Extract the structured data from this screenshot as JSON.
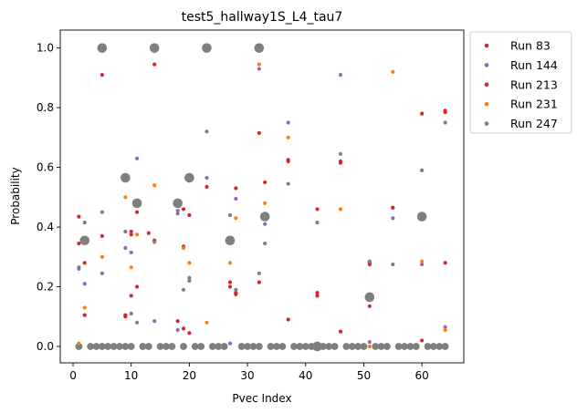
{
  "chart_data": {
    "type": "scatter",
    "title": "test5_hallway1S_L4_tau7",
    "xlabel": "Pvec Index",
    "ylabel": "Probability",
    "xlim": [
      -2.2,
      67.2
    ],
    "ylim": [
      -0.055,
      1.06
    ],
    "xticks": [
      0,
      10,
      20,
      30,
      40,
      50,
      60
    ],
    "yticks": [
      0.0,
      0.2,
      0.4,
      0.6,
      0.8,
      1.0
    ],
    "grid": false,
    "legend_position": "outside-right",
    "series": [
      {
        "name": "Run 83",
        "color": "#d62728",
        "points": [
          [
            1,
            0.345
          ],
          [
            1,
            0.435
          ],
          [
            2,
            0.105
          ],
          [
            2,
            0.28
          ],
          [
            5,
            0.91
          ],
          [
            5,
            0.37
          ],
          [
            9,
            0.105
          ],
          [
            9,
            0.1
          ],
          [
            10,
            0.385
          ],
          [
            10,
            0.17
          ],
          [
            11,
            0.2
          ],
          [
            11,
            0.45
          ],
          [
            13,
            0.38
          ],
          [
            14,
            0.945
          ],
          [
            18,
            0.085
          ],
          [
            19,
            0.06
          ],
          [
            19,
            0.46
          ],
          [
            20,
            0.045
          ],
          [
            20,
            0.44
          ],
          [
            23,
            0.535
          ],
          [
            27,
            0.215
          ],
          [
            27,
            0.2
          ],
          [
            28,
            0.175
          ],
          [
            28,
            0.53
          ],
          [
            32,
            0.715
          ],
          [
            32,
            0.215
          ],
          [
            33,
            0.55
          ],
          [
            37,
            0.625
          ],
          [
            37,
            0.09
          ],
          [
            42,
            0.46
          ],
          [
            42,
            0.18
          ],
          [
            46,
            0.615
          ],
          [
            46,
            0.05
          ],
          [
            51,
            0.275
          ],
          [
            51,
            0.135
          ],
          [
            55,
            0.465
          ],
          [
            60,
            0.78
          ],
          [
            60,
            0.02
          ],
          [
            64,
            0.785
          ],
          [
            64,
            0.28
          ]
        ]
      },
      {
        "name": "Run 144",
        "color": "#9467bd",
        "points": [
          [
            1,
            0.26
          ],
          [
            2,
            0.21
          ],
          [
            5,
            0.245
          ],
          [
            9,
            0.33
          ],
          [
            10,
            0.315
          ],
          [
            11,
            0.63
          ],
          [
            14,
            0.085
          ],
          [
            18,
            0.455
          ],
          [
            18,
            0.055
          ],
          [
            20,
            0.23
          ],
          [
            23,
            0.565
          ],
          [
            27,
            0.01
          ],
          [
            28,
            0.495
          ],
          [
            32,
            0.93
          ],
          [
            33,
            0.41
          ],
          [
            37,
            0.75
          ],
          [
            42,
            0.01
          ],
          [
            46,
            0.91
          ],
          [
            51,
            0.015
          ],
          [
            55,
            0.43
          ],
          [
            60,
            0.275
          ],
          [
            64,
            0.065
          ]
        ]
      },
      {
        "name": "Run 213",
        "color": "#d62728",
        "points": [
          [
            10,
            0.375
          ],
          [
            14,
            0.355
          ],
          [
            19,
            0.335
          ],
          [
            28,
            0.18
          ],
          [
            37,
            0.62
          ],
          [
            42,
            0.17
          ],
          [
            46,
            0.62
          ],
          [
            51,
            0.28
          ],
          [
            55,
            0.465
          ],
          [
            64,
            0.79
          ]
        ]
      },
      {
        "name": "Run 231",
        "color": "#ff7f0e",
        "points": [
          [
            1,
            0.01
          ],
          [
            2,
            0.13
          ],
          [
            5,
            0.3
          ],
          [
            9,
            0.5
          ],
          [
            10,
            0.265
          ],
          [
            11,
            0.375
          ],
          [
            14,
            0.54
          ],
          [
            19,
            0.33
          ],
          [
            20,
            0.28
          ],
          [
            23,
            0.08
          ],
          [
            27,
            0.28
          ],
          [
            28,
            0.43
          ],
          [
            32,
            0.945
          ],
          [
            33,
            0.48
          ],
          [
            37,
            0.7
          ],
          [
            46,
            0.46
          ],
          [
            51,
            0.0
          ],
          [
            55,
            0.92
          ],
          [
            60,
            0.285
          ],
          [
            64,
            0.055
          ]
        ]
      },
      {
        "name": "Run 247",
        "color": "#7f7f7f",
        "points": [
          [
            1,
            0.265
          ],
          [
            2,
            0.415
          ],
          [
            5,
            0.45
          ],
          [
            9,
            0.385
          ],
          [
            10,
            0.11
          ],
          [
            11,
            0.08
          ],
          [
            14,
            0.35
          ],
          [
            18,
            0.445
          ],
          [
            19,
            0.19
          ],
          [
            20,
            0.22
          ],
          [
            23,
            0.72
          ],
          [
            27,
            0.44
          ],
          [
            28,
            0.19
          ],
          [
            32,
            0.245
          ],
          [
            33,
            0.345
          ],
          [
            37,
            0.545
          ],
          [
            42,
            0.415
          ],
          [
            46,
            0.645
          ],
          [
            51,
            0.285
          ],
          [
            55,
            0.275
          ],
          [
            60,
            0.59
          ],
          [
            64,
            0.75
          ]
        ]
      }
    ],
    "cluster_points": {
      "color": "#7f7f7f",
      "points": [
        [
          5,
          1.0
        ],
        [
          14,
          1.0
        ],
        [
          23,
          1.0
        ],
        [
          32,
          1.0
        ],
        [
          9,
          0.565
        ],
        [
          20,
          0.565
        ],
        [
          11,
          0.48
        ],
        [
          18,
          0.48
        ],
        [
          33,
          0.435
        ],
        [
          60,
          0.435
        ],
        [
          2,
          0.355
        ],
        [
          27,
          0.355
        ],
        [
          51,
          0.165
        ],
        [
          42,
          0.0
        ]
      ]
    },
    "zero_points": {
      "color": "#7f7f7f",
      "x": [
        1,
        3,
        4,
        5,
        6,
        7,
        8,
        9,
        10,
        12,
        13,
        15,
        16,
        17,
        19,
        21,
        22,
        24,
        25,
        26,
        29,
        30,
        31,
        32,
        34,
        35,
        36,
        38,
        39,
        40,
        41,
        43,
        44,
        45,
        47,
        48,
        49,
        50,
        52,
        53,
        54,
        56,
        57,
        58,
        59,
        61,
        62,
        63,
        64
      ]
    }
  }
}
